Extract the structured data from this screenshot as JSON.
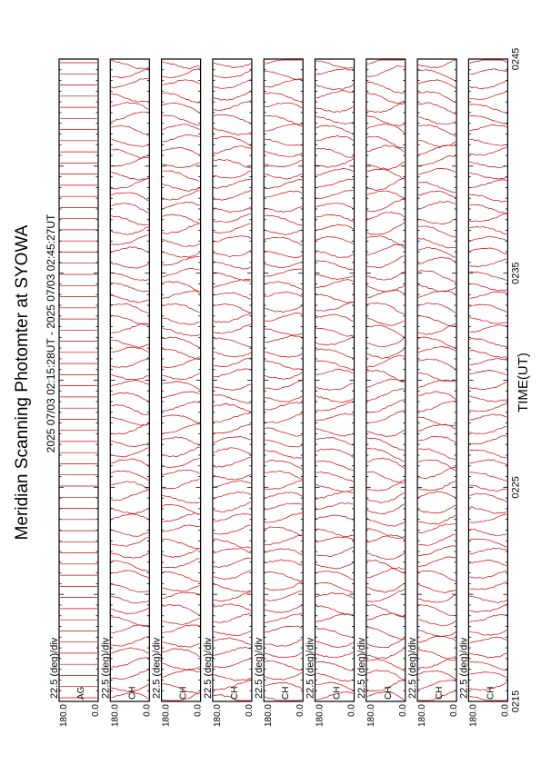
{
  "chart_data": {
    "type": "line",
    "orientation": "rotated-90-ccw",
    "title": "Meridian Scanning Photomter at SYOWA",
    "time_range": "2025 07/03 02:15:28UT - 2025 07/03 02:45:27UT",
    "xlabel": "TIME(UT)",
    "x_ticks": [
      "0215",
      "0225",
      "0235",
      "0245"
    ],
    "xlim": [
      "02:15",
      "02:45"
    ],
    "panel_scale": "22.5 (deg)/div",
    "y_ticks": [
      "180.0",
      "0.0"
    ],
    "ylim": [
      0,
      180
    ],
    "panels": [
      {
        "name": "AG"
      },
      {
        "name": "CH"
      },
      {
        "name": "CH"
      },
      {
        "name": "CH"
      },
      {
        "name": "CH"
      },
      {
        "name": "CH"
      },
      {
        "name": "CH"
      },
      {
        "name": "CH"
      },
      {
        "name": "CH"
      }
    ],
    "trace_color": "#cc0000"
  }
}
